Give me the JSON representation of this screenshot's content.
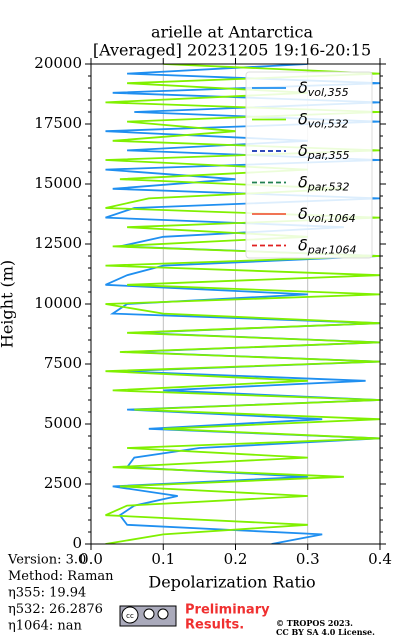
{
  "chart_data": {
    "type": "profile",
    "title": "arielle at Antarctica",
    "subtitle": "[Averaged] 20231205 19:16-20:15",
    "xlabel": "Depolarization Ratio",
    "ylabel": "Height (m)",
    "xlim": [
      0,
      0.4
    ],
    "ylim": [
      0,
      20000
    ],
    "xticks": [
      {
        "value": 0,
        "label": "0.0"
      },
      0.1,
      0.2,
      0.3,
      0.4
    ],
    "yticks": [
      0,
      2500,
      5000,
      7500,
      10000,
      12500,
      15000,
      17500,
      20000
    ],
    "grid": true,
    "legend": "upper right",
    "heights": [
      0,
      400,
      800,
      1200,
      1600,
      2000,
      2400,
      2800,
      3200,
      3600,
      4000,
      4400,
      4800,
      5200,
      5600,
      6000,
      6400,
      6800,
      7200,
      7600,
      8000,
      8400,
      8800,
      9200,
      9600,
      10000,
      10400,
      10800,
      11200,
      11600,
      12000,
      12400,
      12800,
      13200,
      13600,
      14000,
      14400,
      14800,
      15200,
      15600,
      16000,
      16400,
      16800,
      17200,
      17600,
      18000,
      18400,
      18800,
      19200,
      19600,
      20000
    ],
    "series": [
      {
        "name": "δvol,355",
        "color": "#1f8ff0",
        "dash": false,
        "values": [
          0.25,
          0.32,
          0.05,
          0.04,
          0.06,
          0.12,
          0.03,
          0.3,
          0.05,
          0.06,
          0.15,
          0.4,
          0.08,
          0.32,
          0.05,
          0.4,
          0.1,
          0.38,
          0.04,
          0.4,
          0.05,
          0.4,
          0.06,
          0.4,
          0.03,
          0.05,
          0.3,
          0.02,
          0.05,
          0.1,
          0.4,
          0.04,
          0.1,
          0.35,
          0.02,
          0.06,
          0.4,
          0.03,
          0.2,
          0.02,
          0.4,
          0.05,
          0.3,
          0.02,
          0.4,
          0.06,
          0.4,
          0.03,
          0.4,
          0.05,
          0.3
        ]
      },
      {
        "name": "δvol,532",
        "color": "#80f000",
        "dash": false,
        "values": [
          0.02,
          0.1,
          0.3,
          0.02,
          0.05,
          0.3,
          0.04,
          0.35,
          0.03,
          0.3,
          0.05,
          0.4,
          0.1,
          0.4,
          0.06,
          0.4,
          0.03,
          0.3,
          0.02,
          0.4,
          0.04,
          0.4,
          0.05,
          0.4,
          0.1,
          0.02,
          0.4,
          0.05,
          0.4,
          0.02,
          0.4,
          0.03,
          0.3,
          0.05,
          0.4,
          0.02,
          0.08,
          0.35,
          0.04,
          0.3,
          0.02,
          0.4,
          0.03,
          0.2,
          0.05,
          0.4,
          0.02,
          0.3,
          0.05,
          0.4,
          0.1
        ]
      },
      {
        "name": "δpar,355",
        "color": "#1030b0",
        "dash": true,
        "values": [
          null,
          null,
          null,
          null,
          null,
          null,
          null,
          null,
          null,
          null,
          null,
          null,
          null,
          null,
          null,
          null,
          null,
          null,
          null,
          null,
          null,
          null,
          null,
          null,
          null,
          null,
          null,
          null,
          null,
          null,
          null,
          null,
          null,
          null,
          null,
          null,
          null,
          null,
          null,
          null,
          null,
          null,
          null,
          null,
          null,
          null,
          null,
          null,
          null,
          null,
          null
        ]
      },
      {
        "name": "δpar,532",
        "color": "#208050",
        "dash": true,
        "values": [
          null,
          null,
          null,
          null,
          null,
          null,
          null,
          null,
          null,
          null,
          null,
          null,
          null,
          null,
          null,
          null,
          null,
          null,
          null,
          null,
          null,
          null,
          null,
          null,
          null,
          null,
          null,
          null,
          null,
          null,
          null,
          null,
          null,
          null,
          null,
          null,
          null,
          null,
          null,
          null,
          null,
          null,
          null,
          null,
          null,
          null,
          null,
          null,
          null,
          null,
          null
        ]
      },
      {
        "name": "δvol,1064",
        "color": "#f06040",
        "dash": false,
        "values": [
          null,
          null,
          null,
          null,
          null,
          null,
          null,
          null,
          null,
          null,
          null,
          null,
          null,
          null,
          null,
          null,
          null,
          null,
          null,
          null,
          null,
          null,
          null,
          null,
          null,
          null,
          null,
          null,
          null,
          null,
          null,
          null,
          null,
          null,
          null,
          null,
          null,
          null,
          null,
          null,
          null,
          null,
          null,
          null,
          null,
          null,
          null,
          null,
          null,
          null,
          null
        ]
      },
      {
        "name": "δpar,1064",
        "color": "#e02020",
        "dash": true,
        "values": [
          null,
          null,
          null,
          null,
          null,
          null,
          null,
          null,
          null,
          null,
          null,
          null,
          null,
          null,
          null,
          null,
          null,
          null,
          null,
          null,
          null,
          null,
          null,
          null,
          null,
          null,
          null,
          null,
          null,
          null,
          null,
          null,
          null,
          null,
          null,
          null,
          null,
          null,
          null,
          null,
          null,
          null,
          null,
          null,
          null,
          null,
          null,
          null,
          null,
          null,
          null
        ]
      }
    ]
  },
  "footer": {
    "info": [
      "Version: 3.0",
      "Method: Raman",
      "η355:  19.94",
      "η532: 26.2876",
      "η1064:    nan"
    ],
    "preliminary": [
      "Preliminary",
      "Results."
    ],
    "license": [
      "© TROPOS 2023.",
      "CC BY SA 4.0 License."
    ]
  }
}
